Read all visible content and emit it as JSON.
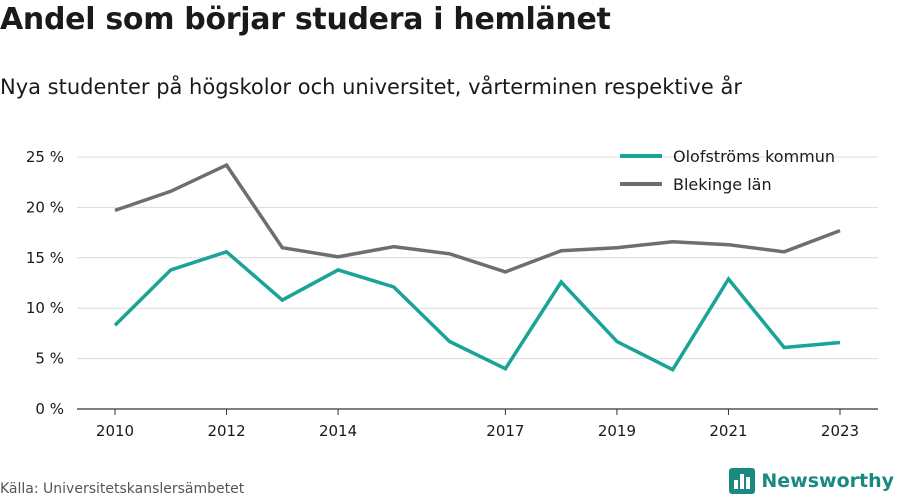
{
  "title": "Andel som börjar studera i hemlänet",
  "subtitle": "Nya studenter på högskolor och universitet, vårterminen respektive år",
  "source": "Källa: Universitetskanslersämbetet",
  "brand": {
    "name": "Newsworthy",
    "logo_icon": "bar-chart-logo-icon",
    "color": "#1a8a80"
  },
  "chart_data": {
    "type": "line",
    "x": [
      2010,
      2011,
      2012,
      2013,
      2014,
      2015,
      2016,
      2017,
      2018,
      2019,
      2020,
      2021,
      2022,
      2023
    ],
    "x_tick_labels": [
      "2010",
      "2012",
      "2014",
      "2017",
      "2019",
      "2021",
      "2023"
    ],
    "y_tick_labels": [
      "0 %",
      "5 %",
      "10 %",
      "15 %",
      "20 %",
      "25 %"
    ],
    "ylim": [
      0,
      25
    ],
    "yticks": [
      0,
      5,
      10,
      15,
      20,
      25
    ],
    "grid": true,
    "legend_position": "top-right",
    "series": [
      {
        "name": "Olofströms kommun",
        "color": "#1aa397",
        "values": [
          8.3,
          13.8,
          15.6,
          10.8,
          13.8,
          12.1,
          6.7,
          4.0,
          12.6,
          6.7,
          3.9,
          12.9,
          6.1,
          6.6
        ]
      },
      {
        "name": "Blekinge län",
        "color": "#6d6e71",
        "values": [
          19.7,
          21.6,
          24.2,
          16.0,
          15.1,
          16.1,
          15.4,
          13.6,
          15.7,
          16.0,
          16.6,
          16.3,
          15.6,
          17.7
        ]
      }
    ]
  }
}
